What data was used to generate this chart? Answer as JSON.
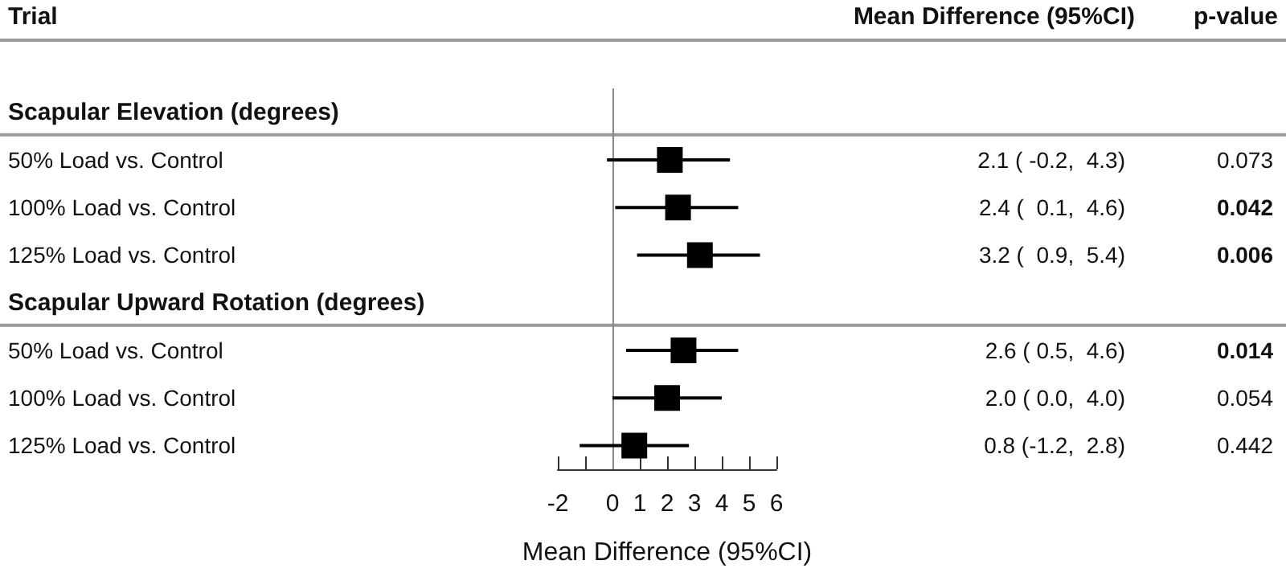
{
  "chart_data": {
    "type": "scatter",
    "orientation": "horizontal",
    "ylabel": "Trial",
    "xlabel": "Mean Difference (95%CI)",
    "categories": [
      "Scapular Elevation (degrees)",
      "50% Load vs. Control",
      "100% Load vs. Control",
      "125% Load vs. Control",
      "Scapular Upward Rotation (degrees)",
      "50% Load vs. Control",
      "100% Load vs. Control",
      "125% Load vs. Control"
    ],
    "values": [
      null,
      2.1,
      2.4,
      3.2,
      null,
      2.6,
      2.0,
      0.8
    ],
    "errors": [
      null,
      [
        -0.2,
        4.3
      ],
      [
        0.1,
        4.6
      ],
      [
        0.9,
        5.4
      ],
      null,
      [
        0.5,
        4.6
      ],
      [
        0.0,
        4.0
      ],
      [
        -1.2,
        2.8
      ]
    ],
    "value_labels": [
      null,
      "2.1 ( -0.2,  4.3)",
      "2.4 (  0.1,  4.6)",
      "3.2 (  0.9,  5.4)",
      null,
      "2.6 ( 0.5,  4.6)",
      "2.0 ( 0.0,  4.0)",
      "0.8 (-1.2,  2.8)"
    ],
    "annotations": [
      "Mean Difference (95%CI)",
      "p-value",
      "0.073",
      "0.042",
      "0.006",
      "0.014",
      "0.054",
      "0.442"
    ],
    "color": "#000000",
    "marker": "square",
    "xlim": [
      -2,
      6
    ],
    "xticks": [
      -2,
      {
        "value": -1,
        "label": null
      },
      0,
      1,
      2,
      3,
      4,
      5,
      6
    ],
    "ref_lines": [
      {
        "axis": "x",
        "value": 0,
        "color": "#888888"
      }
    ],
    "grid": false
  }
}
